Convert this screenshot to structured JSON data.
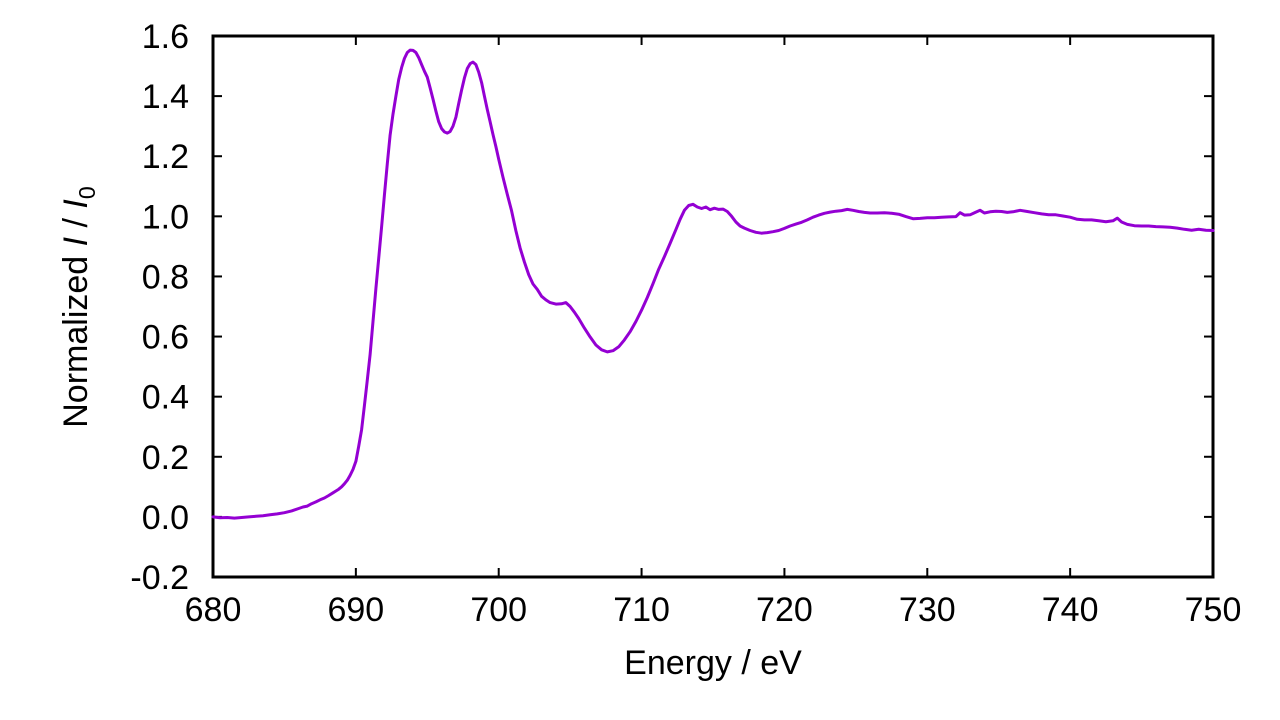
{
  "figure": {
    "background": "#ffffff",
    "axis_color": "#000000"
  },
  "labels": {
    "xlabel": "Energy / eV",
    "ylabel_prefix": "Normalized ",
    "ylabel_i1": "I",
    "ylabel_mid": " / ",
    "ylabel_i2": "I",
    "ylabel_sub": "0"
  },
  "chart_data": {
    "type": "line",
    "title": "",
    "xlabel": "Energy / eV",
    "ylabel": "Normalized I / I₀",
    "xlim": [
      680,
      750
    ],
    "ylim": [
      -0.2,
      1.6
    ],
    "grid": false,
    "legend": false,
    "line_color": "#9400d3",
    "line_width": 3,
    "xtick_values": [
      680,
      690,
      700,
      710,
      720,
      730,
      740,
      750
    ],
    "xtick_labels": [
      "680",
      "690",
      "700",
      "710",
      "720",
      "730",
      "740",
      "750"
    ],
    "ytick_values": [
      -0.2,
      0.0,
      0.2,
      0.4,
      0.6,
      0.8,
      1.0,
      1.2,
      1.4,
      1.6
    ],
    "ytick_labels": [
      "-0.2",
      "0.0",
      "0.2",
      "0.4",
      "0.6",
      "0.8",
      "1.0",
      "1.2",
      "1.4",
      "1.6"
    ],
    "series": [
      {
        "x": [
          680,
          680.5,
          681,
          681.5,
          682,
          682.5,
          683,
          683.5,
          684,
          684.5,
          685,
          685.5,
          686,
          686.3,
          686.6,
          686.9,
          687.2,
          687.5,
          687.8,
          688.1,
          688.4,
          688.6,
          688.8,
          689,
          689.2,
          689.4,
          689.6,
          689.8,
          690,
          690.2,
          690.4,
          690.6,
          690.8,
          691,
          691.2,
          691.4,
          691.6,
          691.8,
          692,
          692.2,
          692.4,
          692.6,
          692.8,
          693,
          693.2,
          693.4,
          693.6,
          693.8,
          694,
          694.2,
          694.4,
          694.6,
          694.8,
          695,
          695.2,
          695.4,
          695.6,
          695.8,
          696,
          696.2,
          696.4,
          696.6,
          696.8,
          697,
          697.2,
          697.4,
          697.6,
          697.8,
          698,
          698.2,
          698.4,
          698.6,
          698.8,
          699,
          699.2,
          699.4,
          699.6,
          699.8,
          700,
          700.3,
          700.6,
          700.9,
          701.2,
          701.5,
          701.8,
          702.1,
          702.4,
          702.7,
          703,
          703.3,
          703.6,
          704,
          704.4,
          704.7,
          705,
          705.3,
          705.6,
          706,
          706.4,
          706.8,
          707.2,
          707.6,
          708,
          708.4,
          708.8,
          709.2,
          709.6,
          710,
          710.4,
          710.8,
          711.2,
          711.6,
          712,
          712.4,
          712.7,
          713,
          713.3,
          713.6,
          713.9,
          714.2,
          714.5,
          714.8,
          715.1,
          715.4,
          715.7,
          716,
          716.3,
          716.6,
          716.9,
          717.2,
          717.6,
          718,
          718.4,
          718.8,
          719.2,
          719.6,
          720,
          720.4,
          720.8,
          721.2,
          721.6,
          722,
          722.4,
          722.8,
          723.2,
          723.6,
          724,
          724.4,
          724.8,
          725.2,
          725.6,
          726,
          726.5,
          727,
          727.5,
          728,
          728.5,
          729,
          729.5,
          730,
          730.5,
          731,
          731.5,
          732,
          732.3,
          732.6,
          733,
          733.4,
          733.7,
          734,
          734.4,
          734.8,
          735.2,
          735.6,
          736,
          736.5,
          737,
          737.5,
          738,
          738.5,
          739,
          739.5,
          740,
          740.5,
          741,
          741.5,
          742,
          742.5,
          743,
          743.3,
          743.6,
          744,
          744.5,
          745,
          745.5,
          746,
          746.5,
          747,
          747.5,
          748,
          748.5,
          749,
          749.5,
          750
        ],
        "y": [
          0.0,
          -0.003,
          -0.002,
          -0.004,
          -0.002,
          0.0,
          0.002,
          0.004,
          0.007,
          0.01,
          0.014,
          0.02,
          0.028,
          0.033,
          0.036,
          0.044,
          0.05,
          0.057,
          0.063,
          0.071,
          0.08,
          0.086,
          0.092,
          0.1,
          0.11,
          0.122,
          0.138,
          0.158,
          0.185,
          0.235,
          0.29,
          0.37,
          0.455,
          0.54,
          0.65,
          0.76,
          0.86,
          0.965,
          1.07,
          1.175,
          1.27,
          1.34,
          1.4,
          1.455,
          1.495,
          1.525,
          1.545,
          1.553,
          1.552,
          1.545,
          1.528,
          1.505,
          1.483,
          1.463,
          1.428,
          1.39,
          1.35,
          1.315,
          1.292,
          1.281,
          1.277,
          1.282,
          1.3,
          1.33,
          1.375,
          1.42,
          1.46,
          1.492,
          1.508,
          1.513,
          1.505,
          1.48,
          1.445,
          1.4,
          1.355,
          1.315,
          1.272,
          1.232,
          1.19,
          1.13,
          1.073,
          1.018,
          0.952,
          0.895,
          0.848,
          0.806,
          0.775,
          0.757,
          0.734,
          0.722,
          0.713,
          0.708,
          0.709,
          0.713,
          0.7,
          0.681,
          0.66,
          0.628,
          0.599,
          0.572,
          0.556,
          0.549,
          0.553,
          0.566,
          0.589,
          0.616,
          0.65,
          0.688,
          0.73,
          0.776,
          0.824,
          0.866,
          0.91,
          0.956,
          0.99,
          1.02,
          1.036,
          1.04,
          1.031,
          1.026,
          1.031,
          1.022,
          1.027,
          1.023,
          1.024,
          1.016,
          1.0,
          0.981,
          0.968,
          0.961,
          0.953,
          0.947,
          0.944,
          0.946,
          0.949,
          0.953,
          0.96,
          0.968,
          0.974,
          0.98,
          0.988,
          0.997,
          1.004,
          1.01,
          1.014,
          1.017,
          1.019,
          1.023,
          1.02,
          1.016,
          1.013,
          1.011,
          1.011,
          1.012,
          1.01,
          1.007,
          0.999,
          0.992,
          0.993,
          0.995,
          0.995,
          0.997,
          0.998,
          0.999,
          1.012,
          1.004,
          1.005,
          1.014,
          1.02,
          1.011,
          1.015,
          1.017,
          1.016,
          1.013,
          1.015,
          1.02,
          1.016,
          1.012,
          1.008,
          1.005,
          1.005,
          1.001,
          0.997,
          0.99,
          0.988,
          0.988,
          0.985,
          0.982,
          0.985,
          0.994,
          0.981,
          0.973,
          0.969,
          0.968,
          0.968,
          0.966,
          0.965,
          0.964,
          0.961,
          0.957,
          0.954,
          0.957,
          0.954,
          0.953
        ]
      }
    ]
  }
}
